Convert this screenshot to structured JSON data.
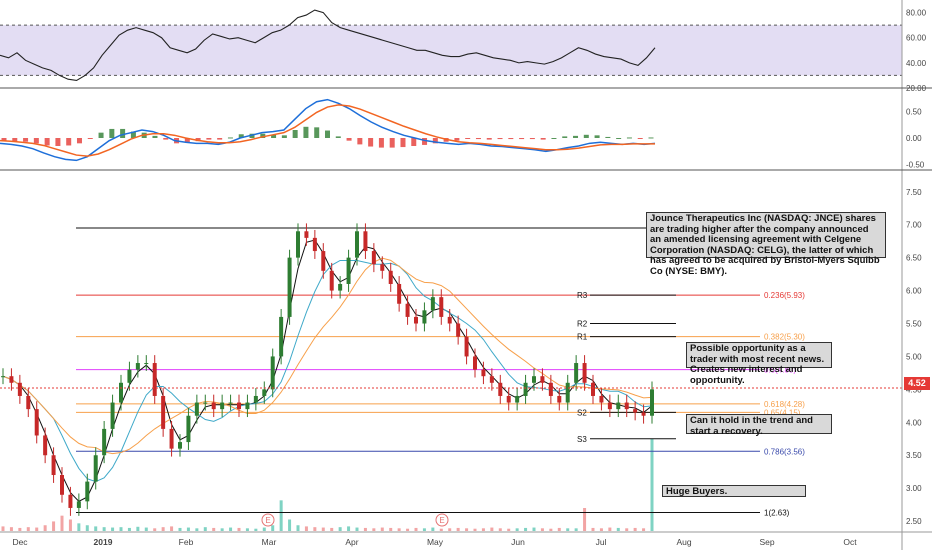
{
  "chart_data": [
    {
      "type": "line",
      "panel": "rsi",
      "ylim": [
        20,
        90
      ],
      "y_ticks": [
        "80.00",
        "60.00",
        "40.00",
        "20.00"
      ],
      "bands": [
        30,
        70
      ],
      "band_color": "#d7cfee",
      "line_color": "#222222",
      "series": [
        {
          "values": [
            46,
            44,
            48,
            42,
            39,
            36,
            34,
            30,
            27,
            26,
            30,
            36,
            46,
            54,
            62,
            66,
            68,
            66,
            64,
            60,
            52,
            50,
            48,
            51,
            58,
            63,
            61,
            59,
            60,
            58,
            56,
            60,
            64,
            66,
            70,
            76,
            78,
            82,
            80,
            72,
            68,
            66,
            64,
            62,
            60,
            58,
            56,
            54,
            52,
            50,
            50,
            48,
            46,
            45,
            45,
            47,
            48,
            46,
            44,
            43,
            42,
            40,
            41,
            40,
            39,
            41,
            44,
            48,
            52,
            50,
            47,
            45,
            44,
            43,
            40,
            38,
            44,
            52
          ]
        }
      ]
    },
    {
      "type": "line",
      "panel": "macd",
      "ylim": [
        -0.6,
        0.9
      ],
      "y_ticks": [
        "0.50",
        "0.00",
        "-0.50"
      ],
      "series": [
        {
          "color": "#1e6fd9",
          "values": [
            -0.1,
            -0.12,
            -0.15,
            -0.2,
            -0.28,
            -0.35,
            -0.4,
            -0.42,
            -0.35,
            -0.2,
            -0.05,
            0.05,
            0.1,
            0.15,
            0.12,
            0.05,
            -0.05,
            -0.08,
            -0.1,
            -0.1,
            -0.12,
            -0.08,
            0.0,
            0.05,
            0.1,
            0.12,
            0.15,
            0.35,
            0.55,
            0.68,
            0.72,
            0.65,
            0.55,
            0.42,
            0.3,
            0.2,
            0.12,
            0.05,
            0.0,
            -0.05,
            -0.08,
            -0.1,
            -0.12,
            -0.1,
            -0.12,
            -0.15,
            -0.16,
            -0.18,
            -0.2,
            -0.22,
            -0.25,
            -0.22,
            -0.18,
            -0.15,
            -0.1,
            -0.08,
            -0.1,
            -0.12,
            -0.1,
            -0.12,
            -0.1
          ]
        },
        {
          "color": "#f26522",
          "values": [
            -0.05,
            -0.06,
            -0.08,
            -0.1,
            -0.14,
            -0.2,
            -0.26,
            -0.32,
            -0.34,
            -0.3,
            -0.22,
            -0.12,
            -0.02,
            0.05,
            0.08,
            0.08,
            0.05,
            0.0,
            -0.04,
            -0.07,
            -0.09,
            -0.09,
            -0.07,
            -0.03,
            0.02,
            0.06,
            0.1,
            0.2,
            0.34,
            0.48,
            0.58,
            0.62,
            0.6,
            0.54,
            0.46,
            0.38,
            0.3,
            0.22,
            0.15,
            0.08,
            0.02,
            -0.03,
            -0.07,
            -0.09,
            -0.1,
            -0.12,
            -0.14,
            -0.16,
            -0.18,
            -0.2,
            -0.22,
            -0.22,
            -0.21,
            -0.19,
            -0.16,
            -0.13,
            -0.12,
            -0.12,
            -0.11,
            -0.11,
            -0.11
          ]
        },
        {
          "type": "histogram",
          "pos_color": "#2e7d32",
          "neg_color": "#e53935",
          "values": [
            -0.05,
            -0.06,
            -0.07,
            -0.1,
            -0.14,
            -0.15,
            -0.14,
            -0.1,
            -0.01,
            0.1,
            0.17,
            0.17,
            0.12,
            0.1,
            0.04,
            -0.03,
            -0.1,
            -0.08,
            -0.06,
            -0.03,
            -0.03,
            0.01,
            0.07,
            0.08,
            0.08,
            0.06,
            0.05,
            0.15,
            0.21,
            0.2,
            0.14,
            0.03,
            -0.05,
            -0.12,
            -0.16,
            -0.18,
            -0.18,
            -0.17,
            -0.15,
            -0.13,
            -0.1,
            -0.07,
            -0.05,
            -0.01,
            -0.02,
            -0.03,
            -0.02,
            -0.02,
            -0.02,
            -0.02,
            -0.03,
            0.0,
            0.03,
            0.04,
            0.06,
            0.05,
            0.02,
            0.0,
            0.01,
            -0.01,
            0.01
          ]
        }
      ]
    },
    {
      "type": "candlestick",
      "panel": "price",
      "ylim": [
        2.35,
        7.8
      ],
      "y_ticks": [
        "7.50",
        "7.00",
        "6.50",
        "6.00",
        "5.50",
        "5.00",
        "4.50",
        "4.00",
        "3.50",
        "3.00",
        "2.50"
      ],
      "x_labels": [
        "Dec",
        "2019",
        "Feb",
        "Mar",
        "Apr",
        "May",
        "Jun",
        "Jul",
        "Aug",
        "Sep",
        "Oct"
      ],
      "last_price": "4.52",
      "closes": [
        4.7,
        4.6,
        4.4,
        4.2,
        3.8,
        3.5,
        3.2,
        2.9,
        2.7,
        2.8,
        3.1,
        3.5,
        3.9,
        4.3,
        4.6,
        4.8,
        4.9,
        4.9,
        4.4,
        3.9,
        3.6,
        3.7,
        4.1,
        4.3,
        4.3,
        4.2,
        4.3,
        4.3,
        4.2,
        4.3,
        4.4,
        4.5,
        5.0,
        5.6,
        6.5,
        6.9,
        6.8,
        6.6,
        6.3,
        6.0,
        6.1,
        6.5,
        6.9,
        6.6,
        6.4,
        6.3,
        6.1,
        5.8,
        5.6,
        5.5,
        5.7,
        5.9,
        5.6,
        5.5,
        5.3,
        5.0,
        4.8,
        4.7,
        4.6,
        4.4,
        4.3,
        4.4,
        4.6,
        4.7,
        4.6,
        4.4,
        4.3,
        4.6,
        4.9,
        4.6,
        4.4,
        4.3,
        4.2,
        4.3,
        4.2,
        4.15,
        4.1,
        4.5
      ],
      "volumes": [
        1.2,
        1.0,
        0.8,
        1.0,
        0.9,
        1.5,
        2.5,
        4.0,
        3.0,
        2.0,
        1.5,
        1.2,
        1.0,
        0.9,
        1.0,
        0.8,
        1.1,
        0.9,
        0.7,
        1.0,
        1.2,
        0.8,
        0.9,
        0.7,
        1.0,
        0.8,
        0.7,
        0.9,
        0.8,
        0.7,
        0.6,
        0.9,
        1.5,
        8.0,
        3.0,
        1.5,
        1.2,
        1.0,
        0.9,
        0.8,
        1.0,
        1.2,
        0.9,
        0.8,
        0.7,
        0.9,
        0.8,
        0.7,
        0.6,
        0.8,
        0.7,
        0.9,
        0.6,
        0.7,
        0.8,
        0.7,
        0.6,
        0.7,
        0.9,
        0.7,
        0.6,
        0.7,
        0.8,
        0.9,
        0.7,
        0.6,
        0.8,
        0.7,
        0.7,
        6.0,
        0.8,
        0.7,
        0.9,
        0.8,
        0.7,
        0.8,
        0.7,
        24.0
      ],
      "ma_colors": [
        "#111111",
        "#3fa9c9",
        "#f7a04b"
      ],
      "levels": [
        {
          "label": "R1",
          "value": 5.3,
          "color": "#111111"
        },
        {
          "label": "R2",
          "value": 5.5,
          "color": "#111111"
        },
        {
          "label": "R3",
          "value": 5.93,
          "color": "#111111"
        },
        {
          "label": "S2",
          "value": 4.15,
          "color": "#111111"
        },
        {
          "label": "S3",
          "value": 3.75,
          "color": "#111111"
        }
      ],
      "fib_levels": [
        {
          "label": "0.236(5.93)",
          "value": 5.93,
          "color": "#e53935"
        },
        {
          "label": "0.382(5.30)",
          "value": 5.3,
          "color": "#f7a04b"
        },
        {
          "label": "0.5(4.80)",
          "value": 4.8,
          "color": "#e040fb"
        },
        {
          "label": "0.618(4.28)",
          "value": 4.28,
          "color": "#f7a04b"
        },
        {
          "label": "0.65(4.15)",
          "value": 4.15,
          "color": "#f7a04b"
        },
        {
          "label": "0.786(3.56)",
          "value": 3.56,
          "color": "#3949ab"
        },
        {
          "label": "1(2.63)",
          "value": 2.63,
          "color": "#111111"
        },
        {
          "label": "0(6.95)",
          "value": 6.95,
          "color": "#111111"
        }
      ],
      "event_markers": [
        "E",
        "E"
      ],
      "annotations": [
        "Jounce Therapeutics Inc (NASDAQ: JNCE) shares are trading higher after the company announced an amended licensing agreement with Celgene Corporation (NASDAQ: CELG), the latter of which has agreed to be acquired by Bristol-Myers Squibb Co (NYSE: BMY).",
        "Possible opportunity as a trader with most recent news. Creates new interest and opportunity.",
        "Can it hold in the trend and start a recovery.",
        "Huge Buyers."
      ]
    }
  ]
}
